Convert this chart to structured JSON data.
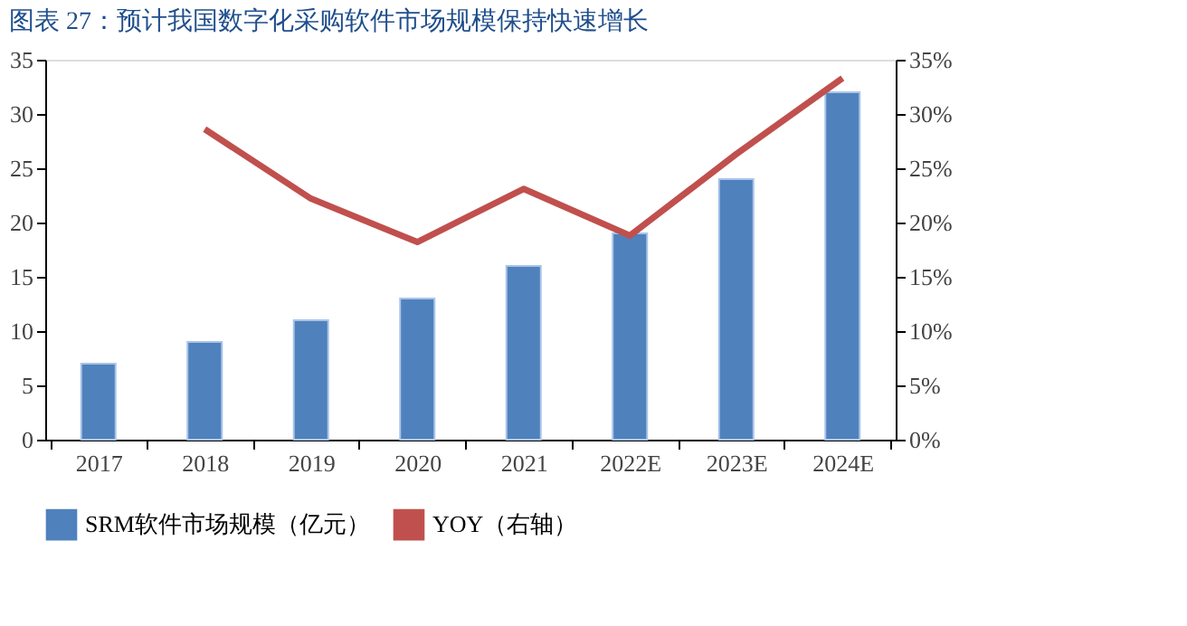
{
  "chart_data": {
    "type": "bar",
    "title": "图表 27：预计我国数字化采购软件市场规模保持快速增长",
    "categories": [
      "2017",
      "2018",
      "2019",
      "2020",
      "2021",
      "2022E",
      "2023E",
      "2024E"
    ],
    "series": [
      {
        "name": "SRM软件市场规模（亿元）",
        "color": "#4f81bd",
        "values": [
          7,
          9,
          11,
          13,
          16,
          19,
          24,
          32
        ]
      },
      {
        "name": "YOY（右轴）",
        "color": "#c0504d",
        "type": "line",
        "axis": "y2",
        "values": [
          null,
          28.6,
          22.2,
          18.2,
          23.1,
          18.8,
          26.3,
          33.3
        ]
      }
    ],
    "ylim": [
      0,
      35
    ],
    "yticks": [
      0,
      5,
      10,
      15,
      20,
      25,
      30,
      35
    ],
    "y2lim": [
      0,
      35
    ],
    "y2ticks": [
      {
        "value": 0,
        "label": "0%"
      },
      {
        "value": 5,
        "label": "5%"
      },
      {
        "value": 10,
        "label": "10%"
      },
      {
        "value": 15,
        "label": "15%"
      },
      {
        "value": 20,
        "label": "20%"
      },
      {
        "value": 25,
        "label": "25%"
      },
      {
        "value": 30,
        "label": "30%"
      },
      {
        "value": 35,
        "label": "35%"
      }
    ],
    "grid": false,
    "legend": "bottom"
  }
}
